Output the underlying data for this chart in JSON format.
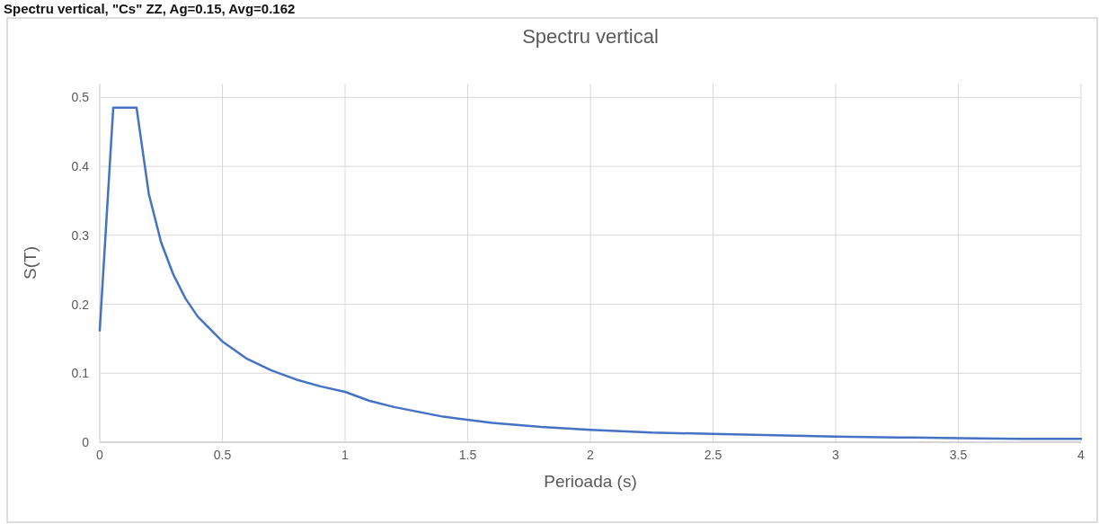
{
  "chart_data": {
    "type": "line",
    "title": "Spectru vertical",
    "xlabel": "Perioada (s)",
    "ylabel": "S(T)",
    "annotations": [
      "Spectru vertical, \"Cs\" ZZ, Ag=0.15, Avg=0.162"
    ],
    "x": [
      0,
      0.055,
      0.15,
      0.2,
      0.25,
      0.3,
      0.35,
      0.4,
      0.5,
      0.6,
      0.7,
      0.8,
      0.9,
      1.0,
      1.1,
      1.2,
      1.4,
      1.6,
      1.8,
      2.0,
      2.25,
      2.5,
      2.75,
      3.0,
      3.25,
      3.5,
      3.75,
      4.0
    ],
    "series": [
      {
        "color": "#4472c4",
        "values": [
          0.162,
          0.485,
          0.485,
          0.36,
          0.29,
          0.243,
          0.208,
          0.182,
          0.146,
          0.121,
          0.104,
          0.091,
          0.081,
          0.073,
          0.06,
          0.051,
          0.037,
          0.028,
          0.022,
          0.018,
          0.014,
          0.012,
          0.01,
          0.008,
          0.007,
          0.006,
          0.005,
          0.005
        ]
      }
    ],
    "xlim": [
      0,
      4
    ],
    "ylim": [
      0,
      0.52
    ],
    "xticks": [
      0,
      0.5,
      1,
      1.5,
      2,
      2.5,
      3,
      3.5,
      4
    ],
    "yticks": [
      0,
      0.1,
      0.2,
      0.3,
      0.4,
      0.5
    ],
    "grid": true,
    "marker": "none",
    "line_style": "solid"
  }
}
